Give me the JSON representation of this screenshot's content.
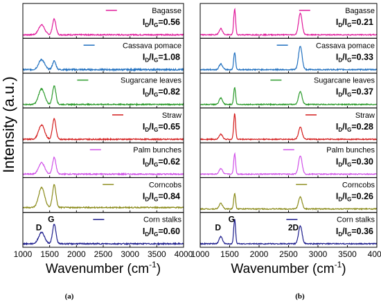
{
  "figure": {
    "ylabel": "Intensity (a.u.)",
    "xlabel_main": "Wavenumber (cm",
    "xlabel_sup": "-1",
    "xlabel_close": ")",
    "xticks": [
      "1000",
      "1500",
      "2000",
      "2500",
      "3000",
      "3500",
      "4000"
    ]
  },
  "chart_data": [
    {
      "type": "line",
      "panel_label": "(a)",
      "xlim": [
        1000,
        4000
      ],
      "series": [
        {
          "name": "Bagasse",
          "ratio": "0.56",
          "color": "#e0189a",
          "D": 0.35,
          "G": 0.55,
          "twoD": 0.0,
          "noise": 0.04,
          "base": 0.05
        },
        {
          "name": "Cassava pomace",
          "ratio": "1.08",
          "color": "#1f6fbf",
          "D": 0.35,
          "G": 0.3,
          "twoD": 0.0,
          "noise": 0.05,
          "base": 0.05
        },
        {
          "name": "Sugarcane leaves",
          "ratio": "0.82",
          "color": "#2a9a2a",
          "D": 0.55,
          "G": 0.65,
          "twoD": 0.0,
          "noise": 0.04,
          "base": 0.05
        },
        {
          "name": "Straw",
          "ratio": "0.65",
          "color": "#d41c1c",
          "D": 0.5,
          "G": 0.72,
          "twoD": 0.0,
          "noise": 0.04,
          "base": 0.05
        },
        {
          "name": "Palm bunches",
          "ratio": "0.62",
          "color": "#d050e8",
          "D": 0.4,
          "G": 0.58,
          "twoD": 0.0,
          "noise": 0.04,
          "base": 0.05
        },
        {
          "name": "Corncobs",
          "ratio": "0.84",
          "color": "#8a8a18",
          "D": 0.7,
          "G": 0.8,
          "twoD": 0.0,
          "noise": 0.04,
          "base": 0.1
        },
        {
          "name": "Corn stalks",
          "ratio": "0.60",
          "color": "#1c1c8c",
          "D": 0.4,
          "G": 0.68,
          "twoD": 0.0,
          "noise": 0.04,
          "base": 0.05
        }
      ],
      "annotations": [
        {
          "text": "D",
          "x": 1350
        },
        {
          "text": "G",
          "x": 1580
        }
      ]
    },
    {
      "type": "line",
      "panel_label": "(b)",
      "xlim": [
        1000,
        4000
      ],
      "series": [
        {
          "name": "Bagasse",
          "ratio": "0.21",
          "color": "#e0189a",
          "D": 0.22,
          "G": 0.9,
          "twoD": 0.75,
          "noise": 0.035,
          "base": 0.05
        },
        {
          "name": "Cassava pomace",
          "ratio": "0.33",
          "color": "#1f6fbf",
          "D": 0.2,
          "G": 0.6,
          "twoD": 0.82,
          "noise": 0.04,
          "base": 0.05
        },
        {
          "name": "Sugarcane leaves",
          "ratio": "0.37",
          "color": "#2a9a2a",
          "D": 0.22,
          "G": 0.6,
          "twoD": 0.45,
          "noise": 0.035,
          "base": 0.05
        },
        {
          "name": "Straw",
          "ratio": "0.28",
          "color": "#d41c1c",
          "D": 0.18,
          "G": 0.9,
          "twoD": 0.42,
          "noise": 0.035,
          "base": 0.05
        },
        {
          "name": "Palm bunches",
          "ratio": "0.30",
          "color": "#d050e8",
          "D": 0.2,
          "G": 0.72,
          "twoD": 0.65,
          "noise": 0.035,
          "base": 0.05
        },
        {
          "name": "Corncobs",
          "ratio": "0.26",
          "color": "#8a8a18",
          "D": 0.2,
          "G": 0.55,
          "twoD": 0.42,
          "noise": 0.035,
          "base": 0.05
        },
        {
          "name": "Corn stalks",
          "ratio": "0.36",
          "color": "#1c1c8c",
          "D": 0.25,
          "G": 0.85,
          "twoD": 0.62,
          "noise": 0.035,
          "base": 0.05
        }
      ],
      "annotations": [
        {
          "text": "D",
          "x": 1350
        },
        {
          "text": "G",
          "x": 1580
        },
        {
          "text": "2D",
          "x": 2700
        }
      ]
    }
  ]
}
